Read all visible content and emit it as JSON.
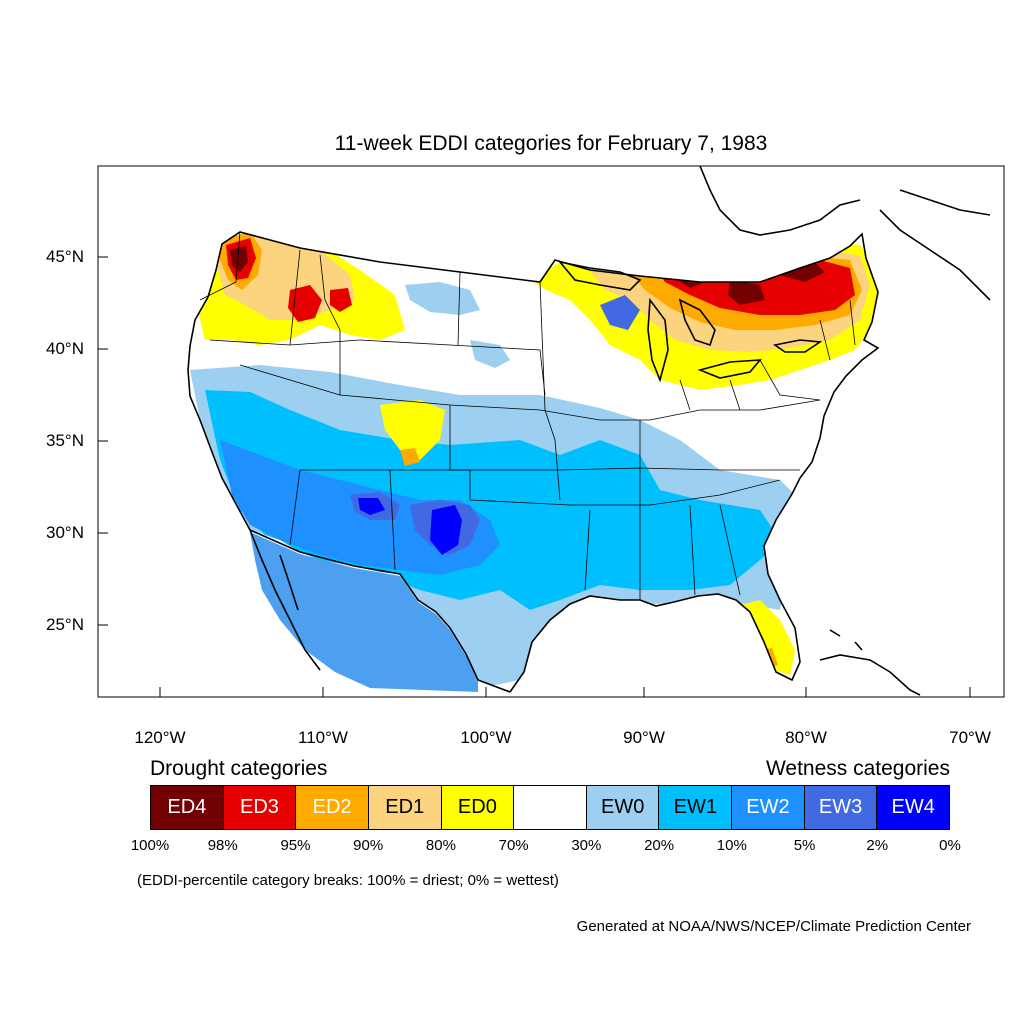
{
  "title": "11-week EDDI categories for February 7, 1983",
  "lat_labels": [
    "45°N",
    "40°N",
    "35°N",
    "30°N",
    "25°N"
  ],
  "lon_labels": [
    "120°W",
    "110°W",
    "100°W",
    "90°W",
    "80°W",
    "70°W"
  ],
  "legend": {
    "drought_heading": "Drought categories",
    "wetness_heading": "Wetness categories",
    "categories": [
      {
        "label": "ED4",
        "color": "#730000",
        "text_color": "#ffffff"
      },
      {
        "label": "ED3",
        "color": "#e60000",
        "text_color": "#ffffff"
      },
      {
        "label": "ED2",
        "color": "#ffaa00",
        "text_color": "#ffffff"
      },
      {
        "label": "ED1",
        "color": "#fcd37f",
        "text_color": "#000000"
      },
      {
        "label": "ED0",
        "color": "#ffff00",
        "text_color": "#000000"
      },
      {
        "label": "",
        "color": "#ffffff",
        "text_color": "#000000"
      },
      {
        "label": "EW0",
        "color": "#9dcff0",
        "text_color": "#000000"
      },
      {
        "label": "EW1",
        "color": "#00bfff",
        "text_color": "#000000"
      },
      {
        "label": "EW2",
        "color": "#1e90ff",
        "text_color": "#ffffff"
      },
      {
        "label": "EW3",
        "color": "#4169e1",
        "text_color": "#ffffff"
      },
      {
        "label": "EW4",
        "color": "#0000ff",
        "text_color": "#ffffff"
      }
    ],
    "breaks": [
      "100%",
      "98%",
      "95%",
      "90%",
      "80%",
      "70%",
      "30%",
      "20%",
      "10%",
      "5%",
      "2%",
      "0%"
    ]
  },
  "note": "(EDDI-percentile category breaks: 100% = driest; 0% = wettest)",
  "credit": "Generated at NOAA/NWS/NCEP/Climate Prediction Center"
}
